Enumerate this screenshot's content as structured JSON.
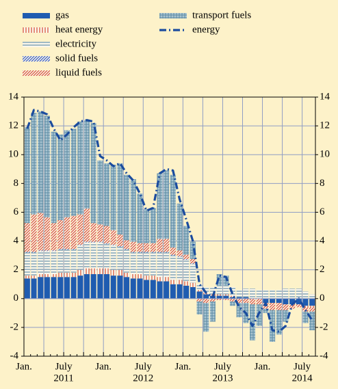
{
  "chart_data": {
    "type": "bar",
    "stacked": true,
    "grid": true,
    "categories": [
      "Jan.",
      null,
      null,
      null,
      null,
      null,
      "July",
      null,
      null,
      null,
      null,
      null,
      "Jan.",
      null,
      null,
      null,
      null,
      null,
      "July",
      null,
      null,
      null,
      null,
      null,
      "Jan.",
      null,
      null,
      null,
      null,
      null,
      "July",
      null,
      null,
      null,
      null,
      null,
      "Jan.",
      null,
      null,
      null,
      null,
      null,
      "July",
      null
    ],
    "years": [
      "2011",
      "2012",
      "2013",
      "2014"
    ],
    "ylim": [
      -4,
      14
    ],
    "yticks": [
      -4,
      -2,
      0,
      2,
      4,
      6,
      8,
      10,
      12,
      14
    ],
    "series": [
      {
        "name": "gas",
        "color": "#1f5cb0",
        "pattern": "solid",
        "values": [
          1.4,
          1.4,
          1.5,
          1.5,
          1.5,
          1.5,
          1.5,
          1.5,
          1.6,
          1.7,
          1.7,
          1.7,
          1.7,
          1.6,
          1.6,
          1.5,
          1.4,
          1.4,
          1.3,
          1.3,
          1.2,
          1.2,
          1.0,
          1.0,
          0.9,
          0.8,
          0.5,
          0.3,
          0.2,
          0.2,
          0.2,
          0.1,
          0.1,
          0.1,
          0,
          0,
          -0.3,
          -0.3,
          -0.3,
          -0.4,
          -0.4,
          -0.4,
          -0.5,
          -0.5
        ]
      },
      {
        "name": "heat energy",
        "color": "#d9553a",
        "pattern": "vertical",
        "values": [
          0.2,
          0.2,
          0.2,
          0.2,
          0.2,
          0.3,
          0.3,
          0.3,
          0.4,
          0.4,
          0.4,
          0.4,
          0.4,
          0.4,
          0.4,
          0.3,
          0.3,
          0.3,
          0.3,
          0.3,
          0.3,
          0.3,
          0.3,
          0.3,
          0.3,
          0.3,
          0.1,
          0.1,
          0.1,
          0.1,
          0.1,
          0.1,
          0,
          0,
          0,
          0,
          0,
          0,
          0,
          0,
          0,
          0,
          -0.1,
          -0.1
        ]
      },
      {
        "name": "electricity",
        "color": "#6f98ae",
        "pattern": "horizontal",
        "values": [
          1.6,
          1.6,
          1.6,
          1.6,
          1.6,
          1.6,
          1.6,
          1.6,
          1.7,
          1.8,
          1.8,
          1.8,
          1.7,
          1.7,
          1.6,
          1.6,
          1.5,
          1.5,
          1.6,
          1.6,
          1.7,
          1.7,
          1.7,
          1.6,
          1.5,
          1.3,
          0.4,
          0.4,
          0.5,
          0.6,
          0.6,
          0.6,
          0.5,
          0.6,
          0.7,
          0.6,
          0.6,
          0.6,
          0.6,
          0.7,
          0.7,
          0.7,
          0.5,
          0.3
        ]
      },
      {
        "name": "solid fuels",
        "color": "#3a5fc0",
        "pattern": "diagonal",
        "values": [
          0.05,
          0.05,
          0.05,
          0.05,
          0.05,
          0.05,
          0.05,
          0.05,
          0.05,
          0.05,
          0.05,
          0.05,
          0.05,
          0.05,
          0.05,
          0.05,
          0.05,
          0.05,
          0.05,
          0.05,
          0.05,
          0.05,
          0.05,
          0.05,
          0.05,
          0.05,
          0,
          0,
          0,
          0,
          0,
          0,
          0,
          0,
          0,
          0,
          0,
          0,
          0,
          0,
          0,
          0,
          0,
          0
        ]
      },
      {
        "name": "liquid fuels",
        "color": "#d9553a",
        "pattern": "diagonal",
        "values": [
          2.0,
          2.6,
          2.6,
          2.3,
          1.9,
          2.0,
          2.2,
          2.3,
          2.1,
          2.3,
          1.3,
          1.2,
          1.2,
          1.0,
          0.8,
          0.6,
          0.7,
          0.6,
          0.6,
          0.6,
          0.9,
          0.9,
          0.5,
          0.4,
          0.3,
          0.3,
          -0.2,
          -0.3,
          -0.2,
          -0.1,
          -0.1,
          -0.2,
          -0.3,
          -0.3,
          -0.4,
          -0.4,
          -0.4,
          -0.5,
          -0.5,
          -0.4,
          -0.3,
          -0.2,
          -0.3,
          -0.3
        ]
      },
      {
        "name": "transport fuels",
        "color": "#5d8ba3",
        "pattern": "grid",
        "values": [
          6.65,
          7.05,
          7.05,
          7.05,
          6.35,
          5.95,
          6.05,
          6.05,
          6.45,
          6.15,
          6.95,
          4.45,
          4.35,
          4.55,
          4.95,
          4.55,
          4.35,
          3.45,
          2.35,
          2.45,
          4.55,
          4.75,
          5.05,
          3.25,
          2.0,
          1.2,
          -0.9,
          -2.0,
          -1.4,
          0.8,
          0.7,
          -0.3,
          -1.0,
          -1.4,
          -2.5,
          -1.5,
          -0.3,
          -2.2,
          -1.7,
          -0.8,
          0,
          0,
          -0.8,
          -1.3
        ]
      },
      {
        "name": "energy",
        "color": "#1b4c9e",
        "type": "line",
        "values": [
          11.8,
          13.1,
          13.0,
          12.8,
          11.8,
          11.0,
          11.4,
          11.9,
          12.3,
          12.4,
          12.3,
          9.9,
          9.6,
          9.2,
          9.4,
          8.7,
          8.2,
          7.3,
          6.1,
          6.3,
          8.7,
          9.0,
          8.9,
          6.9,
          5.5,
          4.0,
          1.0,
          0.4,
          0.1,
          1.6,
          1.5,
          0.3,
          -0.6,
          -1.0,
          -1.9,
          -1.0,
          -0.3,
          -2.2,
          -2.3,
          -1.9,
          -0.4,
          0,
          -0.8,
          -1.5
        ]
      }
    ]
  }
}
